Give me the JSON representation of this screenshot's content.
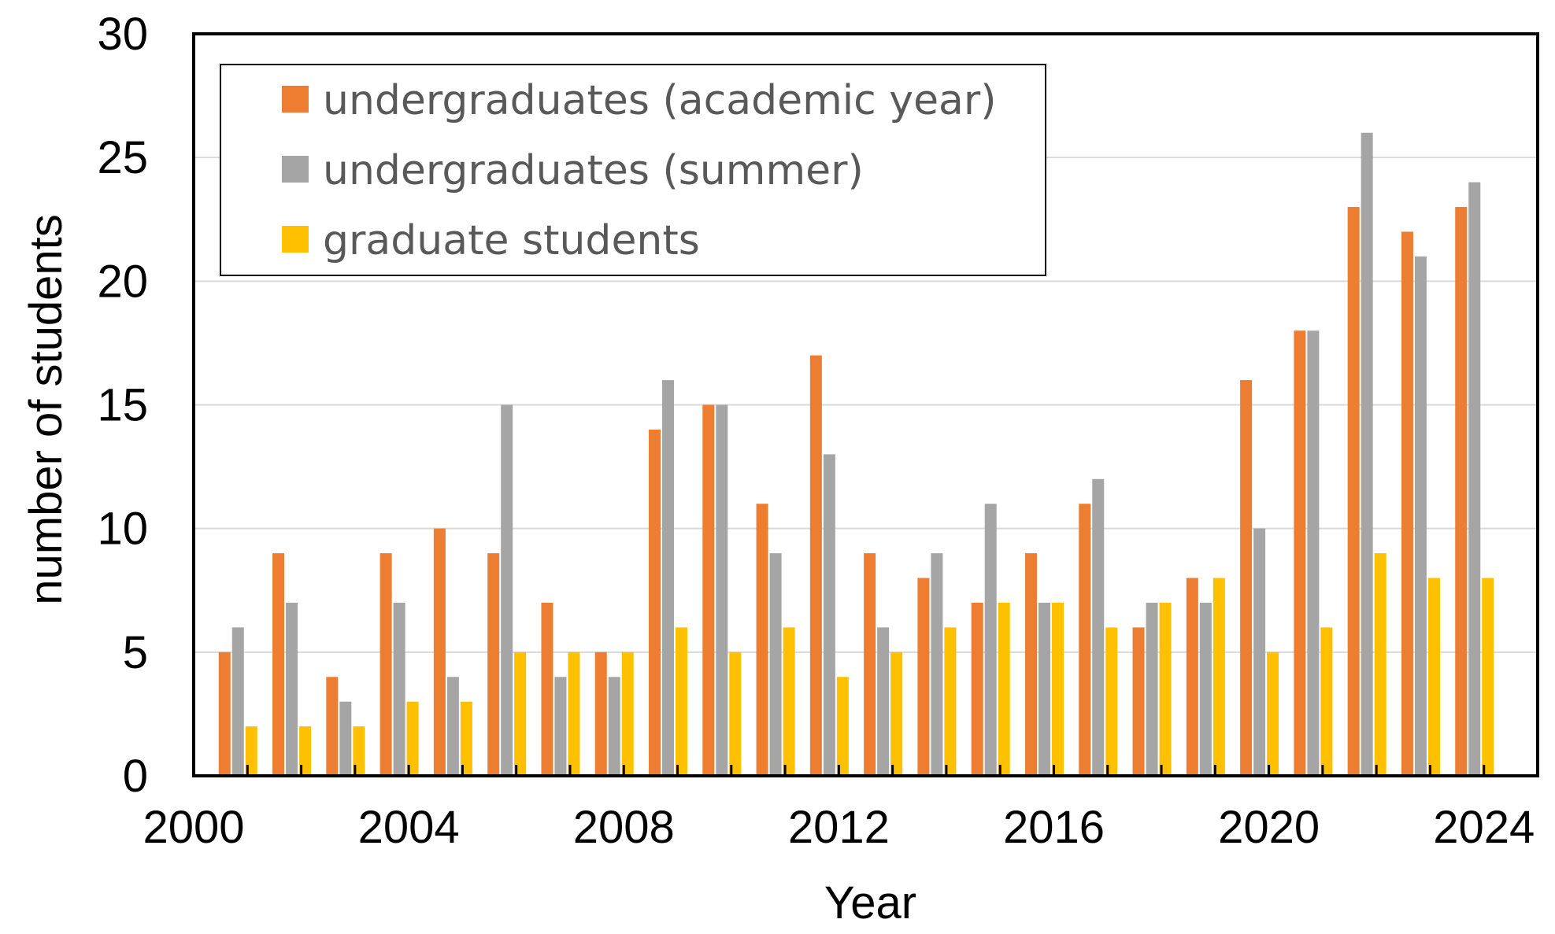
{
  "chart_data": {
    "type": "bar",
    "xlabel": "Year",
    "ylabel": "number of students",
    "x": [
      2001,
      2002,
      2003,
      2004,
      2005,
      2006,
      2007,
      2008,
      2009,
      2010,
      2011,
      2012,
      2013,
      2014,
      2015,
      2016,
      2017,
      2018,
      2019,
      2020,
      2021,
      2022,
      2023,
      2024
    ],
    "xlim": [
      2000,
      2025
    ],
    "ylim": [
      0,
      30
    ],
    "x_ticks": [
      "2000",
      "2004",
      "2008",
      "2012",
      "2016",
      "2020",
      "2024"
    ],
    "y_ticks": [
      "0",
      "5",
      "10",
      "15",
      "20",
      "25",
      "30"
    ],
    "grid": "horizontal",
    "legend_position": "top-left",
    "series": [
      {
        "name": "undergraduates (academic year)",
        "color": "#ED7D31",
        "values": [
          5,
          9,
          4,
          9,
          10,
          9,
          7,
          5,
          14,
          15,
          11,
          17,
          9,
          8,
          7,
          9,
          11,
          6,
          8,
          16,
          18,
          23,
          22,
          23
        ]
      },
      {
        "name": "undergraduates (summer)",
        "color": "#A5A5A5",
        "values": [
          6,
          7,
          3,
          7,
          4,
          15,
          4,
          4,
          16,
          15,
          9,
          13,
          6,
          9,
          11,
          7,
          12,
          7,
          7,
          10,
          18,
          26,
          21,
          24
        ]
      },
      {
        "name": "graduate students",
        "color": "#FFC000",
        "values": [
          2,
          2,
          2,
          3,
          3,
          5,
          5,
          5,
          6,
          5,
          6,
          4,
          5,
          6,
          7,
          7,
          6,
          7,
          8,
          5,
          6,
          9,
          8,
          8
        ]
      }
    ]
  }
}
